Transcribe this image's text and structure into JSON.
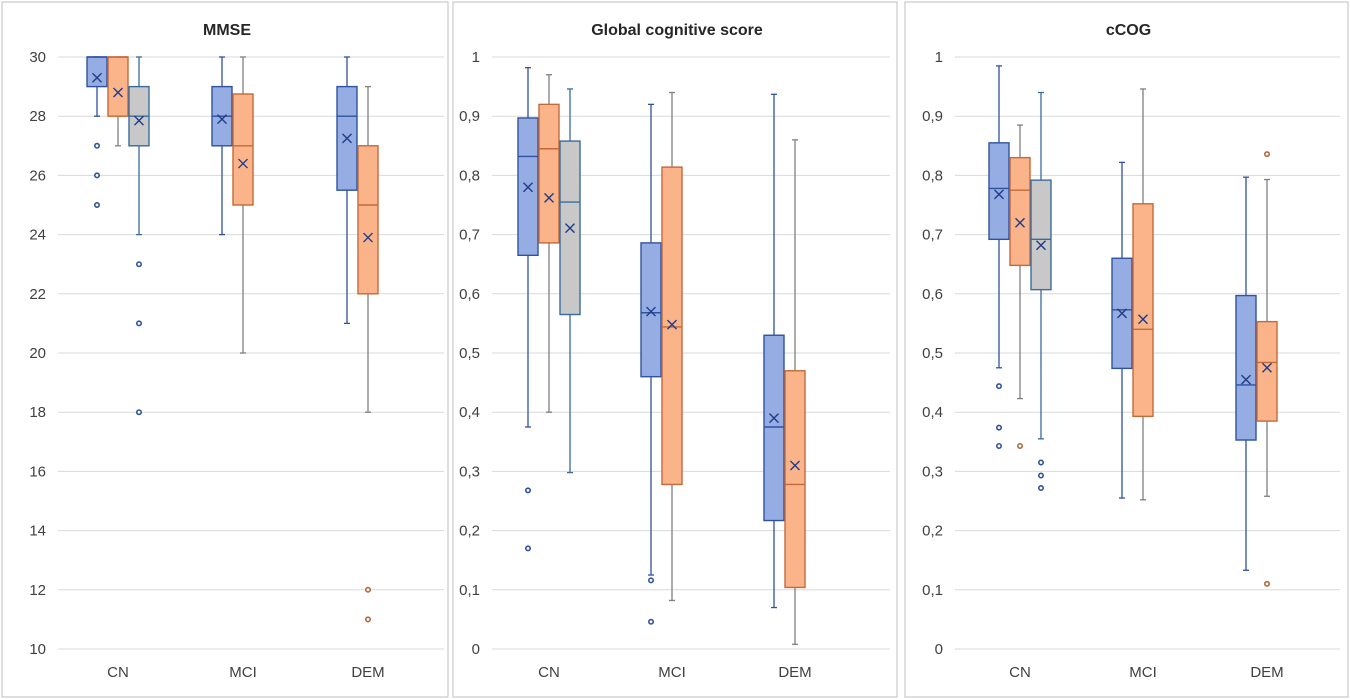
{
  "colors": {
    "group1_fill": "#95ADE3",
    "group1_line": "#2F52A0",
    "group2_fill": "#FBB48A",
    "group2_line": "#C3693A",
    "group3_fill": "#C8C8C8",
    "group3_line": "#3A6B9E",
    "group3_whisker": "#7F7F7F",
    "outlier_blue": "#2F52A0",
    "outlier_orange": "#B2673D"
  },
  "chart_data": [
    {
      "type": "box",
      "title": "MMSE",
      "categories": [
        "CN",
        "MCI",
        "DEM"
      ],
      "ylim": [
        10,
        30
      ],
      "yticks": [
        10,
        12,
        14,
        16,
        18,
        20,
        22,
        24,
        26,
        28,
        30
      ],
      "grid": true,
      "boxes": [
        {
          "category": "CN",
          "group": 1,
          "min": 28,
          "q1": 29,
          "median": 30,
          "q3": 30,
          "max": 30,
          "mean": 29.3,
          "outliers": [
            27,
            26,
            25
          ]
        },
        {
          "category": "CN",
          "group": 2,
          "min": 27,
          "q1": 28,
          "median": 30,
          "q3": 30,
          "max": 30,
          "mean": 28.8,
          "outliers": []
        },
        {
          "category": "CN",
          "group": 3,
          "min": 24,
          "q1": 27,
          "median": 28,
          "q3": 29,
          "max": 30,
          "mean": 27.85,
          "outliers": [
            23,
            21,
            18
          ]
        },
        {
          "category": "MCI",
          "group": 1,
          "min": 24,
          "q1": 27,
          "median": 28,
          "q3": 29,
          "max": 30,
          "mean": 27.9,
          "outliers": []
        },
        {
          "category": "MCI",
          "group": 2,
          "min": 20,
          "q1": 25,
          "median": 27,
          "q3": 28.75,
          "max": 30,
          "mean": 26.4,
          "outliers": []
        },
        {
          "category": "DEM",
          "group": 1,
          "min": 21,
          "q1": 25.5,
          "median": 28,
          "q3": 29,
          "max": 30,
          "mean": 27.25,
          "outliers": []
        },
        {
          "category": "DEM",
          "group": 2,
          "min": 18,
          "q1": 22,
          "median": 25,
          "q3": 27,
          "max": 29,
          "mean": 23.9,
          "outliers": [
            12,
            11
          ]
        }
      ]
    },
    {
      "type": "box",
      "title": "Global cognitive score",
      "categories": [
        "CN",
        "MCI",
        "DEM"
      ],
      "ylim": [
        0,
        1
      ],
      "yticks": [
        0,
        0.1,
        0.2,
        0.3,
        0.4,
        0.5,
        0.6,
        0.7,
        0.8,
        0.9,
        1
      ],
      "yticklabels": [
        "0",
        "0,1",
        "0,2",
        "0,3",
        "0,4",
        "0,5",
        "0,6",
        "0,7",
        "0,8",
        "0,9",
        "1"
      ],
      "grid": true,
      "boxes": [
        {
          "category": "CN",
          "group": 1,
          "min": 0.375,
          "q1": 0.665,
          "median": 0.832,
          "q3": 0.897,
          "max": 0.982,
          "mean": 0.78,
          "outliers": [
            0.268,
            0.17
          ]
        },
        {
          "category": "CN",
          "group": 2,
          "min": 0.4,
          "q1": 0.686,
          "median": 0.845,
          "q3": 0.92,
          "max": 0.97,
          "mean": 0.762,
          "outliers": []
        },
        {
          "category": "CN",
          "group": 3,
          "min": 0.298,
          "q1": 0.565,
          "median": 0.755,
          "q3": 0.858,
          "max": 0.946,
          "mean": 0.711,
          "outliers": []
        },
        {
          "category": "MCI",
          "group": 1,
          "min": 0.125,
          "q1": 0.46,
          "median": 0.568,
          "q3": 0.686,
          "max": 0.92,
          "mean": 0.57,
          "outliers": [
            0.116,
            0.046
          ]
        },
        {
          "category": "MCI",
          "group": 2,
          "min": 0.082,
          "q1": 0.278,
          "median": 0.544,
          "q3": 0.814,
          "max": 0.94,
          "mean": 0.548,
          "outliers": []
        },
        {
          "category": "DEM",
          "group": 1,
          "min": 0.07,
          "q1": 0.217,
          "median": 0.375,
          "q3": 0.53,
          "max": 0.937,
          "mean": 0.39,
          "outliers": []
        },
        {
          "category": "DEM",
          "group": 2,
          "min": 0.008,
          "q1": 0.104,
          "median": 0.278,
          "q3": 0.47,
          "max": 0.86,
          "mean": 0.31,
          "outliers": []
        }
      ]
    },
    {
      "type": "box",
      "title": "cCOG",
      "categories": [
        "CN",
        "MCI",
        "DEM"
      ],
      "ylim": [
        0,
        1
      ],
      "yticks": [
        0,
        0.1,
        0.2,
        0.3,
        0.4,
        0.5,
        0.6,
        0.7,
        0.8,
        0.9,
        1
      ],
      "yticklabels": [
        "0",
        "0,1",
        "0,2",
        "0,3",
        "0,4",
        "0,5",
        "0,6",
        "0,7",
        "0,8",
        "0,9",
        "1"
      ],
      "grid": true,
      "boxes": [
        {
          "category": "CN",
          "group": 1,
          "min": 0.475,
          "q1": 0.692,
          "median": 0.778,
          "q3": 0.855,
          "max": 0.985,
          "mean": 0.768,
          "outliers": [
            0.444,
            0.374,
            0.343
          ]
        },
        {
          "category": "CN",
          "group": 2,
          "min": 0.423,
          "q1": 0.648,
          "median": 0.775,
          "q3": 0.83,
          "max": 0.885,
          "mean": 0.72,
          "outliers": [
            0.343
          ]
        },
        {
          "category": "CN",
          "group": 3,
          "min": 0.355,
          "q1": 0.607,
          "median": 0.692,
          "q3": 0.792,
          "max": 0.94,
          "mean": 0.682,
          "outliers": [
            0.315,
            0.293,
            0.272
          ]
        },
        {
          "category": "MCI",
          "group": 1,
          "min": 0.255,
          "q1": 0.474,
          "median": 0.573,
          "q3": 0.66,
          "max": 0.822,
          "mean": 0.567,
          "outliers": []
        },
        {
          "category": "MCI",
          "group": 2,
          "min": 0.252,
          "q1": 0.393,
          "median": 0.54,
          "q3": 0.752,
          "max": 0.946,
          "mean": 0.557,
          "outliers": []
        },
        {
          "category": "DEM",
          "group": 1,
          "min": 0.133,
          "q1": 0.353,
          "median": 0.446,
          "q3": 0.597,
          "max": 0.797,
          "mean": 0.455,
          "outliers": []
        },
        {
          "category": "DEM",
          "group": 2,
          "min": 0.258,
          "q1": 0.385,
          "median": 0.484,
          "q3": 0.553,
          "max": 0.793,
          "mean": 0.475,
          "outliers": [
            0.836,
            0.11
          ]
        }
      ]
    }
  ]
}
